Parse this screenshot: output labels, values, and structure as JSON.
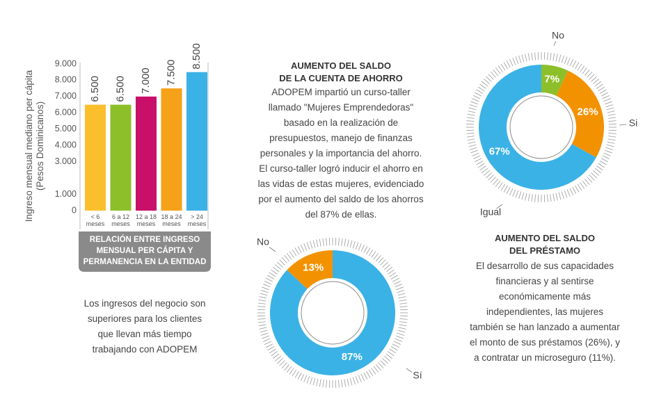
{
  "chart_data": [
    {
      "type": "bar",
      "title": "RELACIÓN ENTRE INGRESO\nMENSUAL PER CÁPITA Y\nPERMANENCIA EN LA ENTIDAD",
      "y_label": "Ingreso mensual mediano per cápita\n(Pesos Dominicanos)",
      "caption": "Los ingresos del negocio son\nsuperiores para los clientes\nque llevan más tiempo\ntrabajando con ADOPEM",
      "categories": [
        "< 6 meses",
        "6 a 12 meses",
        "12 a 18 meses",
        "18 a 24 meses",
        "> 24 meses"
      ],
      "values": [
        6500,
        6500,
        7000,
        7500,
        8500
      ],
      "value_labels": [
        "6.500",
        "6.500",
        "7.000",
        "7.500",
        "8.500"
      ],
      "colors": [
        "#fbbf2e",
        "#8dbf2a",
        "#c8106a",
        "#f6a11a",
        "#3bb2e6"
      ],
      "ylim": [
        0,
        9000
      ],
      "yticks": [
        0,
        {
          "value": 1000,
          "label": "1.000"
        },
        {
          "value": 3000,
          "label": "3.000"
        },
        {
          "value": 4000,
          "label": "4.000"
        },
        {
          "value": 5000,
          "label": "5.000"
        },
        {
          "value": 6000,
          "label": "6.000"
        },
        {
          "value": 7000,
          "label": "7.000"
        },
        {
          "value": 8000,
          "label": "8.000"
        },
        {
          "value": 9000,
          "label": "9.000"
        }
      ]
    },
    {
      "type": "donut",
      "title": "AUMENTO DEL SALDO\nDE LA CUENTA DE AHORRO",
      "description": "ADOPEM impartió un curso-taller\nllamado \"Mujeres Emprendedoras\"\nbasado en la realización de\npresupuestos, manejo de finanzas\npersonales y la importancia del ahorro.\nEl curso-taller logró inducir el ahorro en\nlas vidas de estas mujeres, evidenciado\npor el aumento del saldo de los ahorros\ndel 87% de ellas.",
      "direction": "counterclockwise",
      "categories": [
        "No",
        "Sí"
      ],
      "values": [
        13,
        87
      ],
      "value_labels": [
        "13%",
        "87%"
      ],
      "colors": [
        "#f39200",
        "#3bb2e6"
      ]
    },
    {
      "type": "donut",
      "title": "AUMENTO DEL SALDO\nDEL PRÉSTAMO",
      "description": "El desarrollo de sus capacidades\nfinancieras y al sentirse\neconómicamente más\nindependientes, las mujeres\ntambién se han lanzado a aumentar\nel monto de sus préstamos (26%), y\na contratar un microseguro (11%).",
      "direction": "clockwise",
      "categories": [
        "No",
        "Si",
        "Igual"
      ],
      "values": [
        7,
        26,
        67
      ],
      "value_labels": [
        "7%",
        "26%",
        "67%"
      ],
      "colors": [
        "#8dbf2a",
        "#f39200",
        "#3bb2e6"
      ]
    }
  ]
}
